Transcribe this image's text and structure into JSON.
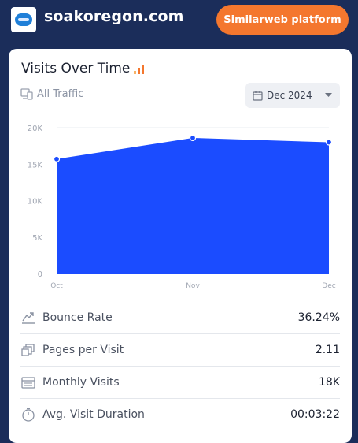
{
  "header": {
    "site_name": "soakoregon.com",
    "cta_label": "Similarweb platform"
  },
  "card": {
    "title": "Visits Over Time",
    "traffic_filter": "All Traffic",
    "date_selector": "Dec 2024"
  },
  "chart_data": {
    "type": "area",
    "categories": [
      "Oct",
      "Nov",
      "Dec"
    ],
    "values": [
      15700,
      18600,
      18000
    ],
    "yticks": [
      "0",
      "5K",
      "10K",
      "15K",
      "20K"
    ],
    "ylim": [
      0,
      20000
    ],
    "area_color": "#1b4cff",
    "marker_color": "#1b4cff",
    "grid": true
  },
  "metrics": [
    {
      "label": "Bounce Rate",
      "value": "36.24%",
      "icon": "bounce-rate-icon"
    },
    {
      "label": "Pages per Visit",
      "value": "2.11",
      "icon": "pages-icon"
    },
    {
      "label": "Monthly Visits",
      "value": "18K",
      "icon": "calendar-icon"
    },
    {
      "label": "Avg. Visit Duration",
      "value": "00:03:22",
      "icon": "stopwatch-icon"
    }
  ],
  "colors": {
    "background": "#1b2d5a",
    "accent": "#f4772e",
    "chart_fill": "#1b4cff"
  }
}
